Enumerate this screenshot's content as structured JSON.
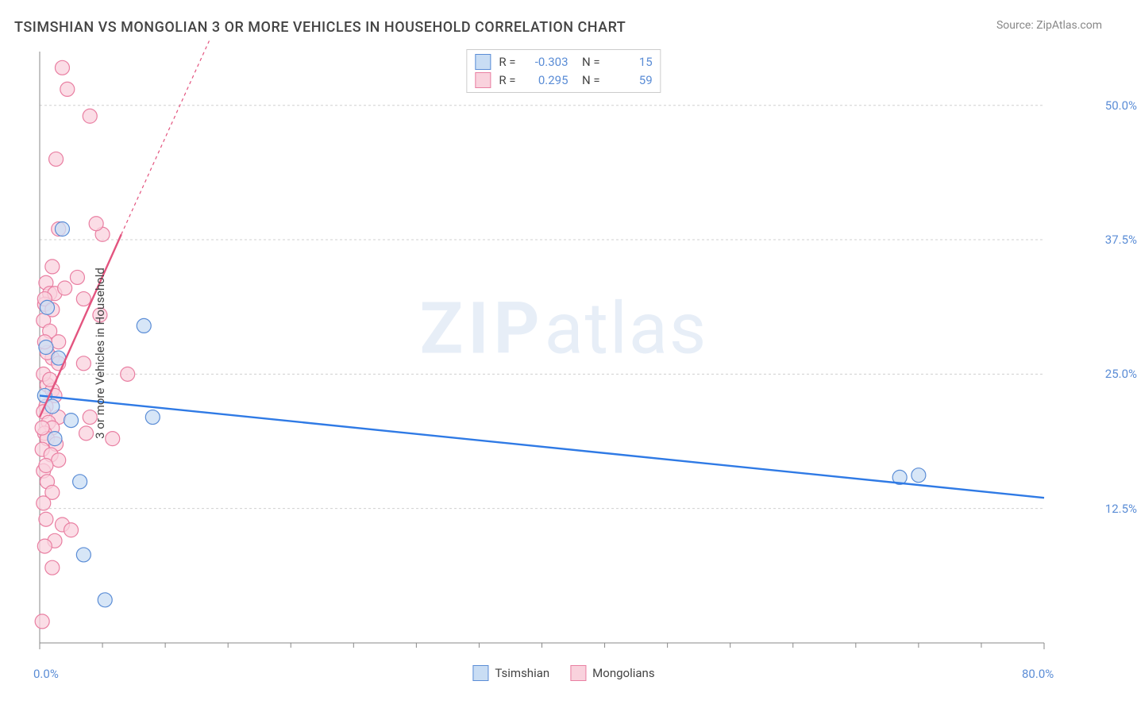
{
  "title": "TSIMSHIAN VS MONGOLIAN 3 OR MORE VEHICLES IN HOUSEHOLD CORRELATION CHART",
  "source_label": "Source: ZipAtlas.com",
  "y_axis_label": "3 or more Vehicles in Household",
  "watermark": {
    "bold": "ZIP",
    "light": "atlas"
  },
  "chart": {
    "type": "scatter",
    "background_color": "#ffffff",
    "grid_color": "#d0d0d0",
    "axis_color": "#888888",
    "tick_label_color": "#5b8dd6",
    "xlim": [
      0,
      80
    ],
    "ylim": [
      0,
      55
    ],
    "x_ticks": [
      0,
      80
    ],
    "x_tick_labels": [
      "0.0%",
      "80.0%"
    ],
    "x_minor_ticks": [
      5,
      10,
      15,
      20,
      25,
      30,
      35,
      40,
      45,
      50,
      55,
      60,
      65,
      70,
      75
    ],
    "y_grid": [
      12.5,
      25.0,
      37.5,
      50.0
    ],
    "y_grid_labels": [
      "12.5%",
      "25.0%",
      "37.5%",
      "50.0%"
    ],
    "series": {
      "tsimshian": {
        "label": "Tsimshian",
        "marker_fill": "#c9ddf4",
        "marker_stroke": "#5b8dd6",
        "line_color": "#2f7ae5",
        "R": "-0.303",
        "N": "15",
        "trend": {
          "x1": 0,
          "y1": 23.0,
          "x2": 80,
          "y2": 13.5
        },
        "points": [
          [
            1.8,
            38.5
          ],
          [
            0.6,
            31.2
          ],
          [
            0.5,
            27.5
          ],
          [
            1.5,
            26.5
          ],
          [
            2.5,
            20.7
          ],
          [
            9.0,
            21.0
          ],
          [
            8.3,
            29.5
          ],
          [
            3.2,
            15.0
          ],
          [
            3.5,
            8.2
          ],
          [
            5.2,
            4.0
          ],
          [
            68.5,
            15.4
          ],
          [
            70.0,
            15.6
          ],
          [
            0.4,
            23.0
          ],
          [
            1.0,
            22.0
          ],
          [
            1.2,
            19.0
          ]
        ]
      },
      "mongolians": {
        "label": "Mongolians",
        "marker_fill": "#f9d2dd",
        "marker_stroke": "#e97fa2",
        "line_color": "#e3547f",
        "R": "0.295",
        "N": "59",
        "trend_solid": {
          "x1": 0,
          "y1": 21.0,
          "x2": 6.5,
          "y2": 38.0
        },
        "trend_dashed": {
          "x1": 6.5,
          "y1": 38.0,
          "x2": 13.5,
          "y2": 56.0
        },
        "points": [
          [
            1.8,
            53.5
          ],
          [
            2.2,
            51.5
          ],
          [
            4.0,
            49.0
          ],
          [
            1.3,
            45.0
          ],
          [
            1.5,
            38.5
          ],
          [
            5.0,
            38.0
          ],
          [
            4.5,
            39.0
          ],
          [
            1.0,
            35.0
          ],
          [
            3.0,
            34.0
          ],
          [
            0.5,
            33.5
          ],
          [
            0.8,
            32.5
          ],
          [
            3.5,
            32.0
          ],
          [
            1.2,
            32.5
          ],
          [
            0.4,
            31.5
          ],
          [
            4.8,
            30.5
          ],
          [
            0.3,
            30.0
          ],
          [
            0.8,
            29.0
          ],
          [
            1.5,
            28.0
          ],
          [
            1.0,
            26.5
          ],
          [
            3.5,
            26.0
          ],
          [
            1.5,
            26.0
          ],
          [
            7.0,
            25.0
          ],
          [
            0.6,
            24.0
          ],
          [
            1.0,
            23.5
          ],
          [
            1.2,
            23.0
          ],
          [
            0.5,
            22.0
          ],
          [
            0.3,
            21.5
          ],
          [
            1.5,
            21.0
          ],
          [
            4.0,
            21.0
          ],
          [
            0.7,
            20.5
          ],
          [
            1.0,
            20.0
          ],
          [
            0.4,
            19.5
          ],
          [
            0.6,
            19.0
          ],
          [
            1.3,
            18.5
          ],
          [
            0.2,
            18.0
          ],
          [
            0.9,
            17.5
          ],
          [
            1.5,
            17.0
          ],
          [
            0.3,
            16.0
          ],
          [
            3.7,
            19.5
          ],
          [
            5.8,
            19.0
          ],
          [
            0.6,
            15.0
          ],
          [
            1.0,
            14.0
          ],
          [
            0.3,
            13.0
          ],
          [
            0.5,
            11.5
          ],
          [
            1.8,
            11.0
          ],
          [
            2.5,
            10.5
          ],
          [
            1.2,
            9.5
          ],
          [
            0.4,
            9.0
          ],
          [
            1.0,
            7.0
          ],
          [
            0.2,
            2.0
          ],
          [
            0.4,
            32.0
          ],
          [
            0.6,
            27.0
          ],
          [
            0.3,
            25.0
          ],
          [
            0.8,
            24.5
          ],
          [
            0.2,
            20.0
          ],
          [
            0.5,
            16.5
          ],
          [
            2.0,
            33.0
          ],
          [
            0.4,
            28.0
          ],
          [
            1.0,
            31.0
          ]
        ]
      }
    },
    "marker_radius": 9,
    "line_width": 2.4,
    "dash_pattern": "4 4",
    "title_fontsize": 18,
    "label_fontsize": 15,
    "tick_fontsize": 15
  }
}
